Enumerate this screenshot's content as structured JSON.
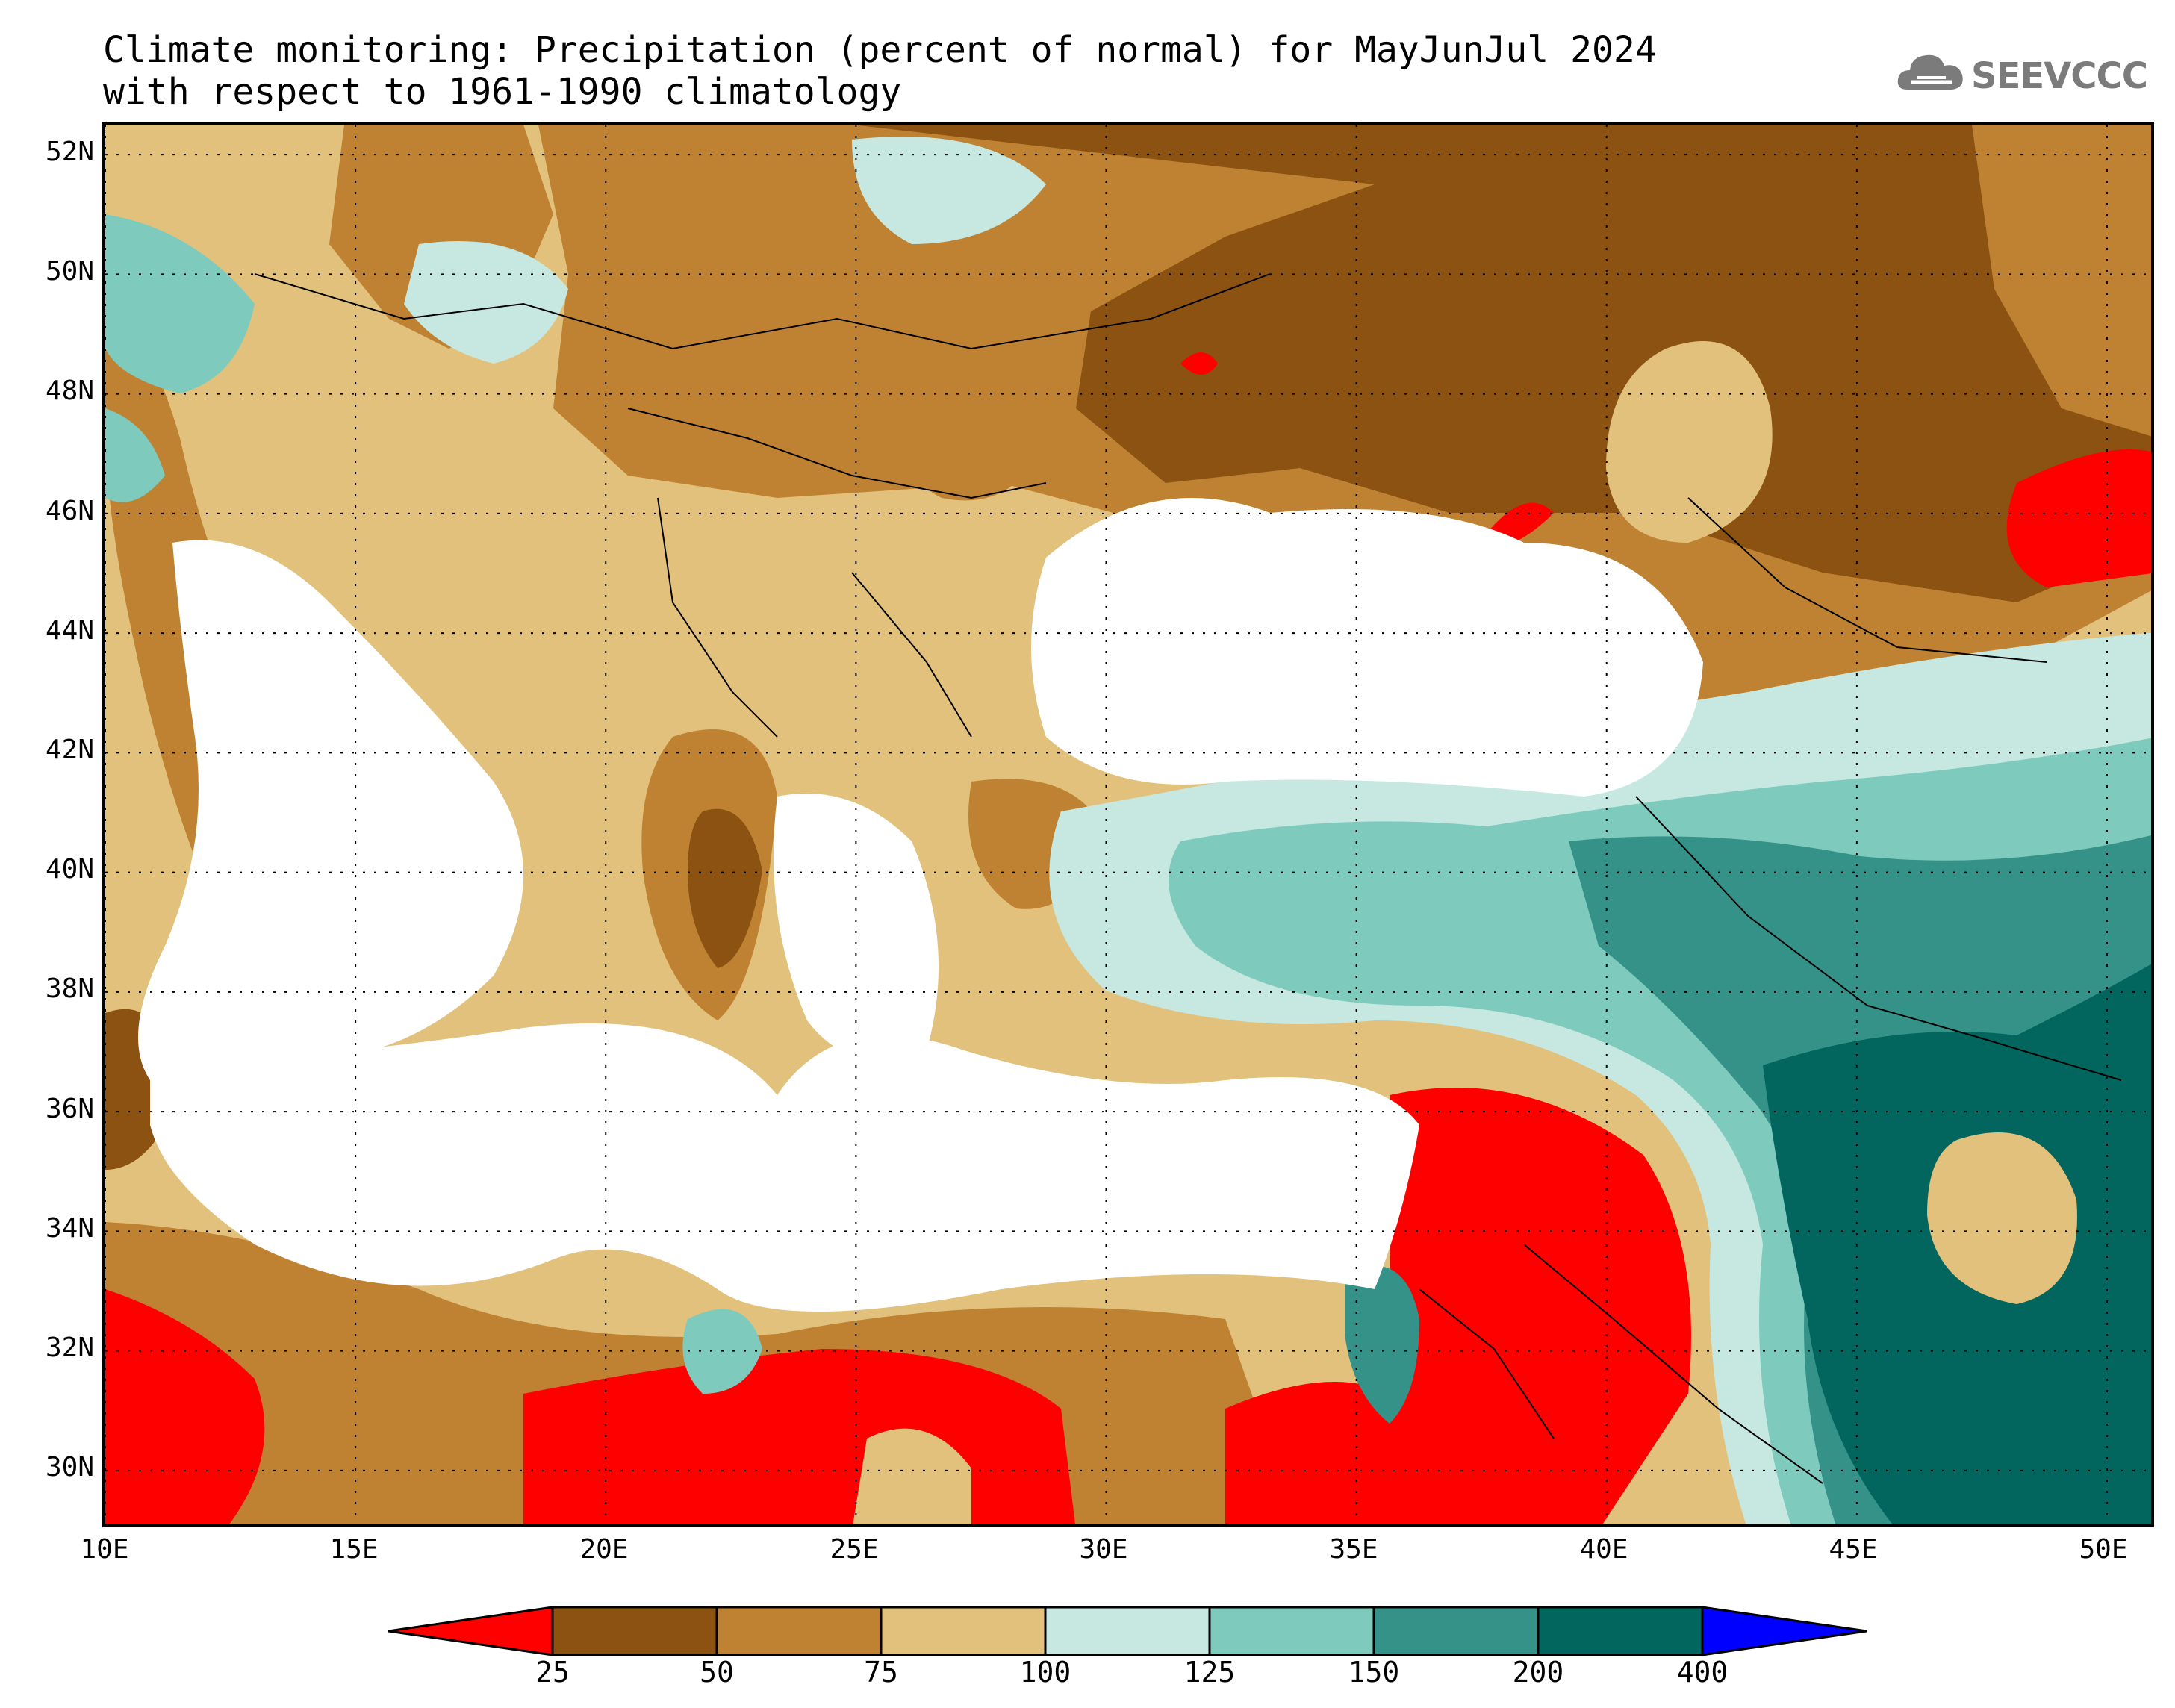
{
  "title": {
    "line1": "Climate monitoring: Precipitation (percent of normal) for MayJunJul 2024",
    "line2": "with respect to 1961-1990 climatology"
  },
  "logo": {
    "text": "SEEVCCC",
    "icon": "cloud-icon",
    "color": "#7b7b7b"
  },
  "map": {
    "lon_range": [
      10,
      51
    ],
    "lat_range": [
      29,
      52.5
    ],
    "lat_labels": [
      "52N",
      "50N",
      "48N",
      "46N",
      "44N",
      "42N",
      "40N",
      "38N",
      "36N",
      "34N",
      "32N",
      "30N"
    ],
    "lat_values": [
      52,
      50,
      48,
      46,
      44,
      42,
      40,
      38,
      36,
      34,
      32,
      30
    ],
    "lon_labels": [
      "10E",
      "15E",
      "20E",
      "25E",
      "30E",
      "35E",
      "40E",
      "45E",
      "50E"
    ],
    "lon_values": [
      10,
      15,
      20,
      25,
      30,
      35,
      40,
      45,
      50
    ],
    "grid": "dotted"
  },
  "legend": {
    "colors": [
      "#ff0000",
      "#8b5211",
      "#bf8232",
      "#e2c17d",
      "#c6e8e0",
      "#7ecbbd",
      "#359289",
      "#02665e",
      "#0000ff"
    ],
    "labels": [
      "25",
      "50",
      "75",
      "100",
      "125",
      "150",
      "200",
      "400"
    ]
  }
}
